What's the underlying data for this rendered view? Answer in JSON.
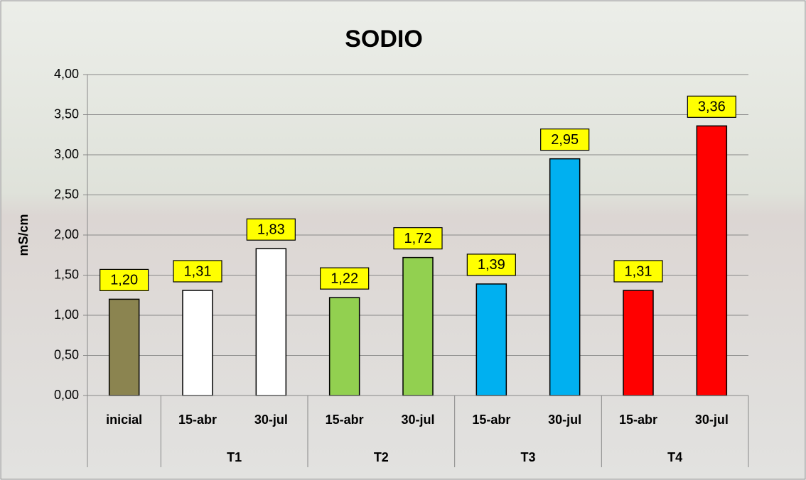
{
  "chart_data": {
    "type": "bar",
    "title": "SODIO",
    "y_label": "mS/cm",
    "categories": [
      "inicial",
      "15-abr",
      "30-jul",
      "15-abr",
      "30-jul",
      "15-abr",
      "30-jul",
      "15-abr",
      "30-jul"
    ],
    "groups": [
      {
        "label": null,
        "size": 1
      },
      {
        "label": "T1",
        "size": 2
      },
      {
        "label": "T2",
        "size": 2
      },
      {
        "label": "T3",
        "size": 2
      },
      {
        "label": "T4",
        "size": 2
      }
    ],
    "values": [
      1.2,
      1.31,
      1.83,
      1.22,
      1.72,
      1.39,
      2.95,
      1.31,
      3.36
    ],
    "value_labels": [
      "1,20",
      "1,31",
      "1,83",
      "1,22",
      "1,72",
      "1,39",
      "2,95",
      "1,31",
      "3,36"
    ],
    "colors": [
      "#8b8450",
      "#ffffff",
      "#ffffff",
      "#92d050",
      "#92d050",
      "#00b0f0",
      "#00b0f0",
      "#ff0000",
      "#ff0000"
    ],
    "ylim": [
      0,
      4
    ],
    "yticks": [
      {
        "value": 0,
        "label": "0,00"
      },
      {
        "value": 0.5,
        "label": "0,50"
      },
      {
        "value": 1,
        "label": "1,00"
      },
      {
        "value": 1.5,
        "label": "1,50"
      },
      {
        "value": 2,
        "label": "2,00"
      },
      {
        "value": 2.5,
        "label": "2,50"
      },
      {
        "value": 3,
        "label": "3,00"
      },
      {
        "value": 3.5,
        "label": "3,50"
      },
      {
        "value": 4,
        "label": "4,00"
      }
    ],
    "grid": true
  }
}
